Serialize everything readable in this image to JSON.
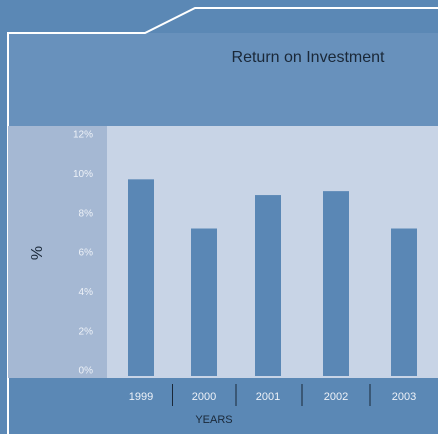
{
  "chart_data": {
    "type": "bar",
    "title": "Return on Investment",
    "categories": [
      "1999",
      "2000",
      "2001",
      "2002",
      "2003"
    ],
    "values": [
      10.0,
      7.5,
      9.2,
      9.4,
      7.5
    ],
    "color": "#5a87b5",
    "ylabel": "%",
    "xlabel": "YEARS",
    "ylim": [
      0,
      12
    ],
    "yticks": [
      {
        "value": 0,
        "label": "0%"
      },
      {
        "value": 2,
        "label": "2%"
      },
      {
        "value": 4,
        "label": "4%"
      },
      {
        "value": 6,
        "label": "6%"
      },
      {
        "value": 8,
        "label": "8%"
      },
      {
        "value": 10,
        "label": "10%"
      },
      {
        "value": 12,
        "label": "12%"
      }
    ]
  }
}
